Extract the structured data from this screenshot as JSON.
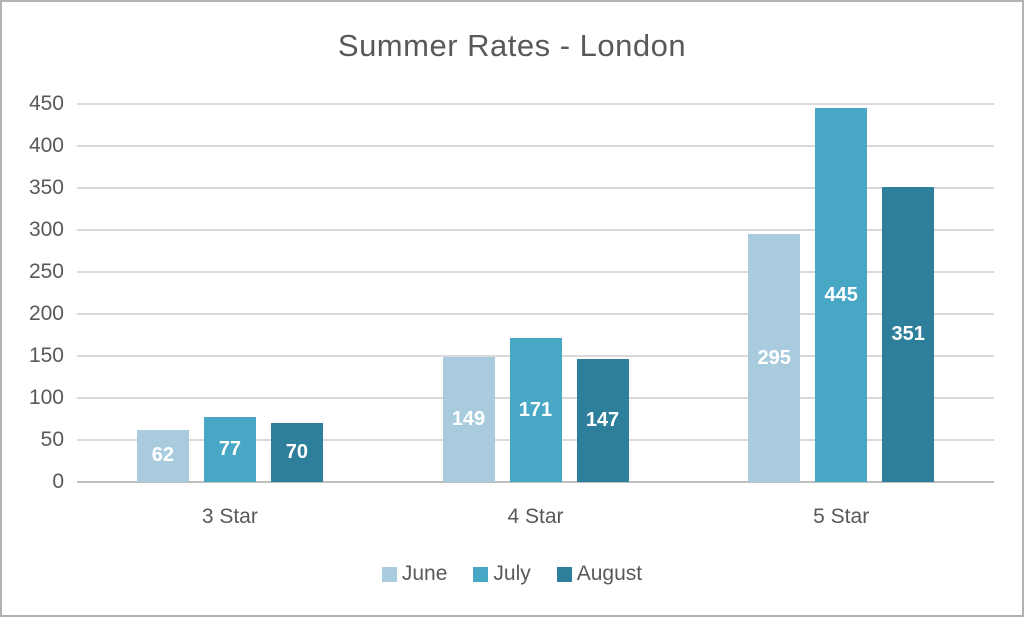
{
  "page": {
    "background": "#ffffff",
    "frame_border_color": "#b2b2b2"
  },
  "chart_data": {
    "type": "bar",
    "title": "Summer Rates - London",
    "categories": [
      "3 Star",
      "4 Star",
      "5 Star"
    ],
    "series": [
      {
        "name": "June",
        "color": "#a8ccdd",
        "values": [
          62,
          149,
          295
        ]
      },
      {
        "name": "July",
        "color": "#47a7c4",
        "values": [
          77,
          171,
          445
        ]
      },
      {
        "name": "August",
        "color": "#2e7f9b",
        "values": [
          70,
          147,
          351
        ]
      }
    ],
    "xlabel": "",
    "ylabel": "",
    "ylim": [
      0,
      450
    ],
    "yticks": [
      0,
      50,
      100,
      150,
      200,
      250,
      300,
      350,
      400,
      450
    ],
    "grid": true,
    "legend_position": "bottom",
    "data_labels": true,
    "data_label_color": "#ffffff",
    "text_color": "#595959",
    "gridline_color": "#d9d9d9",
    "axis_line_color": "#bfbfbf"
  }
}
